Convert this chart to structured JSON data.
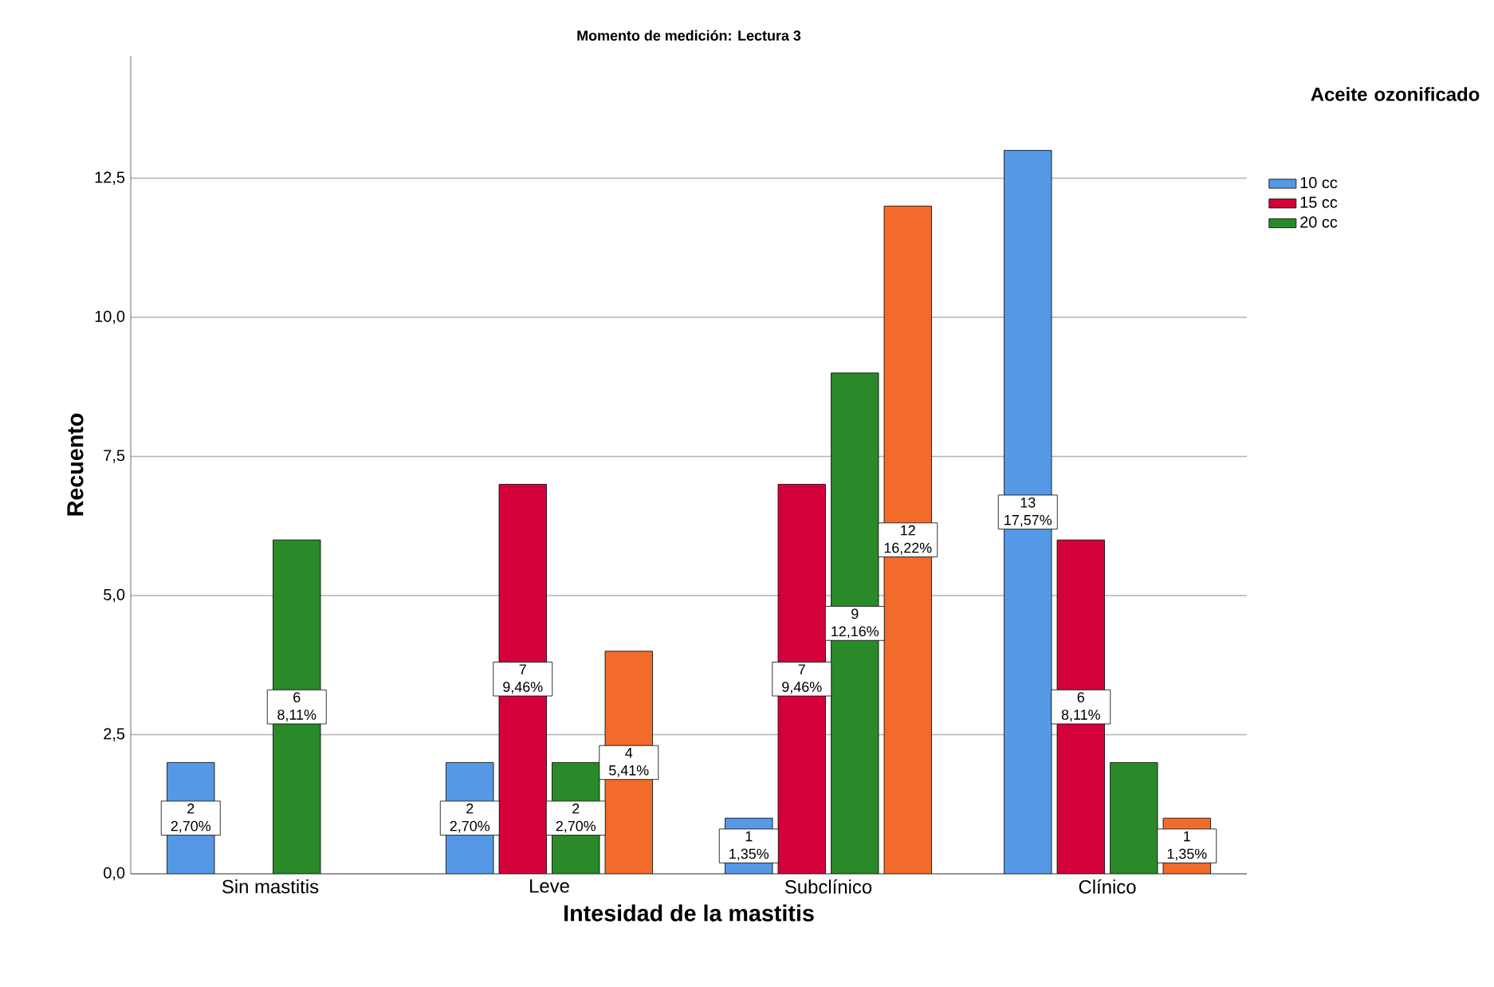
{
  "chart_data": {
    "type": "bar",
    "title": "Momento de medición: Lectura 3",
    "xlabel": "Intesidad de la mastitis",
    "ylabel": "Recuento",
    "legend_title": "Aceite ozonificado",
    "categories": [
      "Sin mastitis",
      "Leve",
      "Subclínico",
      "Clínico"
    ],
    "series": [
      {
        "name": "10 cc",
        "color": "#5599e6",
        "values": [
          2,
          2,
          1,
          13
        ],
        "value_labels": [
          "2 2,70%",
          "2 2,70%",
          "1 1,35%",
          "13 17,57%"
        ]
      },
      {
        "name": "15 cc",
        "color": "#d4003a",
        "values": [
          null,
          7,
          7,
          6
        ],
        "value_labels": [
          null,
          "7 9,46%",
          "7 9,46%",
          "6 8,11%"
        ]
      },
      {
        "name": "20 cc",
        "color": "#2a8a2a",
        "values": [
          6,
          2,
          9,
          2
        ],
        "value_labels": [
          "6 8,11%",
          "2 2,70%",
          "9 12,16%",
          null
        ]
      },
      {
        "color": "#f26b2b",
        "values": [
          null,
          4,
          12,
          1
        ],
        "value_labels": [
          null,
          "4 5,41%",
          "12 16,22%",
          "1 1,35%"
        ]
      }
    ],
    "ylim": [
      0,
      14.7
    ],
    "yticks": [
      {
        "value": 0,
        "label": "0,0"
      },
      {
        "value": 2.5,
        "label": "2,5"
      },
      {
        "value": 5,
        "label": "5,0"
      },
      {
        "value": 7.5,
        "label": "7,5"
      },
      {
        "value": 10,
        "label": "10,0"
      },
      {
        "value": 12.5,
        "label": "12,5"
      }
    ],
    "grid": "y",
    "legend": "right"
  }
}
